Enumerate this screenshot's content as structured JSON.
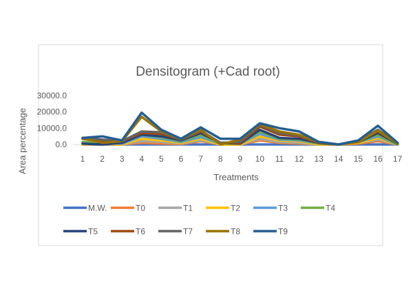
{
  "chart_data": {
    "type": "line",
    "title": "Densitogram (+Cad root)",
    "xlabel": "Treatments",
    "ylabel": "Area percentage",
    "categories": [
      "1",
      "2",
      "3",
      "4",
      "5",
      "6",
      "7",
      "8",
      "9",
      "10",
      "11",
      "12",
      "13",
      "14",
      "15",
      "16",
      "17"
    ],
    "yticks": [
      "0.0",
      "10000.0",
      "20000.0",
      "30000.0"
    ],
    "ylim": [
      0,
      30000
    ],
    "grid": false,
    "legend_position": "bottom",
    "series": [
      {
        "name": "M.W.",
        "color": "#4472C4",
        "values": [
          0,
          0,
          0,
          0,
          0,
          0,
          0,
          0,
          0,
          0,
          0,
          0,
          0,
          0,
          0,
          0,
          0
        ]
      },
      {
        "name": "T0",
        "color": "#ED7D31",
        "values": [
          0,
          0,
          0,
          1000,
          500,
          200,
          2000,
          0,
          0,
          2500,
          1000,
          500,
          0,
          0,
          500,
          2000,
          0
        ]
      },
      {
        "name": "T1",
        "color": "#A5A5A5",
        "values": [
          0,
          0,
          0,
          2000,
          1500,
          500,
          2500,
          0,
          0,
          3500,
          1500,
          1000,
          0,
          0,
          1000,
          3000,
          0
        ]
      },
      {
        "name": "T2",
        "color": "#FFC000",
        "values": [
          0,
          500,
          0,
          3500,
          2500,
          1000,
          3500,
          0,
          0,
          5000,
          2500,
          2000,
          0,
          0,
          1000,
          4000,
          0
        ]
      },
      {
        "name": "T3",
        "color": "#5B9BD5",
        "values": [
          1000,
          1000,
          500,
          5000,
          3500,
          1500,
          4500,
          500,
          500,
          6500,
          3000,
          2500,
          500,
          0,
          1500,
          5000,
          0
        ]
      },
      {
        "name": "T4",
        "color": "#70AD47",
        "values": [
          1500,
          1500,
          1000,
          6000,
          4500,
          2000,
          6000,
          500,
          500,
          8000,
          3500,
          3000,
          500,
          0,
          1500,
          6000,
          0
        ]
      },
      {
        "name": "T5",
        "color": "#264478",
        "values": [
          500,
          0,
          1000,
          6000,
          5000,
          2500,
          7000,
          1000,
          500,
          9000,
          4000,
          3500,
          1000,
          0,
          1500,
          7000,
          500
        ]
      },
      {
        "name": "T6",
        "color": "#9E480E",
        "values": [
          3500,
          2000,
          2000,
          7000,
          6500,
          3000,
          8000,
          1000,
          1000,
          11000,
          6000,
          5000,
          1000,
          0,
          2000,
          8000,
          500
        ]
      },
      {
        "name": "T7",
        "color": "#636363",
        "values": [
          4000,
          3000,
          2000,
          8000,
          7500,
          3000,
          8500,
          1000,
          1500,
          12000,
          7000,
          5500,
          1500,
          0,
          2000,
          9000,
          500
        ]
      },
      {
        "name": "T8",
        "color": "#997300",
        "values": [
          4000,
          1000,
          2000,
          17000,
          8000,
          3500,
          9000,
          0,
          3000,
          12500,
          8000,
          6000,
          1500,
          0,
          1500,
          8500,
          500
        ]
      },
      {
        "name": "T9",
        "color": "#255E91",
        "values": [
          4000,
          5000,
          2500,
          19500,
          9000,
          3500,
          10500,
          3500,
          3500,
          13000,
          10000,
          8000,
          1500,
          0,
          2500,
          11500,
          1000
        ]
      }
    ]
  }
}
